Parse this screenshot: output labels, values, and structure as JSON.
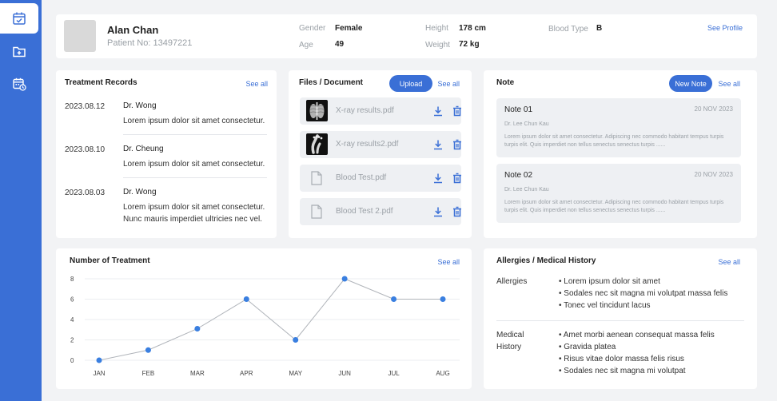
{
  "sidebar": {
    "items": [
      {
        "icon": "calendar-check-icon",
        "active": true
      },
      {
        "icon": "folder-add-icon",
        "active": false
      },
      {
        "icon": "calendar-clock-icon",
        "active": false
      }
    ]
  },
  "patient": {
    "name": "Alan Chan",
    "patient_no": "Patient No: 13497221",
    "gender_label": "Gender",
    "gender": "Female",
    "age_label": "Age",
    "age": "49",
    "height_label": "Height",
    "height": "178 cm",
    "weight_label": "Weight",
    "weight": "72 kg",
    "blood_label": "Blood Type",
    "blood": "B",
    "see_profile": "See Profile"
  },
  "treatment": {
    "title": "Treatment Records",
    "see_all": "See all",
    "records": [
      {
        "date": "2023.08.12",
        "doctor": "Dr. Wong",
        "lines": [
          "Lorem ipsum dolor sit amet consectetur."
        ]
      },
      {
        "date": "2023.08.10",
        "doctor": "Dr. Cheung",
        "lines": [
          "Lorem ipsum dolor sit amet consectetur."
        ]
      },
      {
        "date": "2023.08.03",
        "doctor": "Dr. Wong",
        "lines": [
          "Lorem ipsum dolor sit amet consectetur.",
          "Nunc mauris imperdiet ultricies nec vel."
        ]
      }
    ]
  },
  "files": {
    "title": "Files / Document",
    "upload": "Upload",
    "see_all": "See all",
    "items": [
      {
        "name": "X-ray results.pdf",
        "thumb": "xray-chest"
      },
      {
        "name": "X-ray results2.pdf",
        "thumb": "xray-foot"
      },
      {
        "name": "Blood Test.pdf",
        "thumb": "file"
      },
      {
        "name": "Blood Test 2.pdf",
        "thumb": "file"
      }
    ]
  },
  "notes": {
    "title": "Note",
    "new_note": "New Note",
    "see_all": "See all",
    "items": [
      {
        "title": "Note 01",
        "date": "20 NOV 2023",
        "author": "Dr. Lee Chun Kau",
        "body": "Lorem ipsum dolor sit amet consectetur. Adipiscing nec commodo habitant tempus turpis turpis elit. Quis imperdiet non tellus senectus senectus turpis ......"
      },
      {
        "title": "Note 02",
        "date": "20 NOV 2023",
        "author": "Dr. Lee Chun Kau",
        "body": "Lorem ipsum dolor sit amet consectetur. Adipiscing nec commodo habitant tempus turpis turpis elit. Quis imperdiet non tellus senectus senectus turpis ......"
      }
    ]
  },
  "chart_data": {
    "type": "line",
    "title": "Number of  Treatment",
    "see_all": "See all",
    "categories": [
      "JAN",
      "FEB",
      "MAR",
      "APR",
      "MAY",
      "JUN",
      "JUL",
      "AUG"
    ],
    "values": [
      0,
      1,
      3.1,
      6,
      2,
      8,
      6,
      6
    ],
    "yticks": [
      0,
      2,
      4,
      6,
      8
    ],
    "ylim": [
      0,
      8
    ],
    "grid": true,
    "colors": {
      "point": "#3a7fe0",
      "line": "#b0b4ba",
      "grid": "#ebedf0"
    }
  },
  "allergies": {
    "title": "Allergies / Medical History",
    "see_all": "See all",
    "sections": [
      {
        "label_lines": [
          "Allergies"
        ],
        "items": [
          "Lorem ipsum dolor sit amet",
          "Sodales nec sit magna mi volutpat massa felis",
          "Tonec vel tincidunt lacus"
        ]
      },
      {
        "label_lines": [
          "Medical",
          "History"
        ],
        "items": [
          "Amet morbi aenean consequat massa felis",
          "Gravida platea",
          "Risus vitae dolor massa felis risus",
          "Sodales nec sit magna mi volutpat"
        ]
      }
    ]
  },
  "colors": {
    "accent": "#3a6fd6",
    "background": "#f2f3f5"
  }
}
